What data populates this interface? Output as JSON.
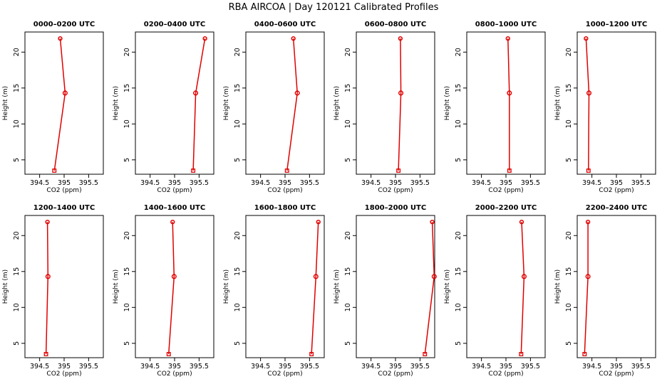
{
  "figure": {
    "title": "RBA AIRCOA | Day 120121 Calibrated Profiles"
  },
  "chart_data": [
    {
      "type": "line",
      "title": "0000–0200 UTC",
      "xlabel": "CO2 (ppm)",
      "ylabel": "Height (m)",
      "xlim": [
        394.2,
        395.8
      ],
      "ylim": [
        3,
        22.8
      ],
      "xticks": [
        394.5,
        395.0,
        395.5
      ],
      "yticks": [
        5,
        10,
        15,
        20
      ],
      "x": [
        394.8,
        395.02,
        394.92
      ],
      "y": [
        3.5,
        14.3,
        21.9
      ]
    },
    {
      "type": "line",
      "title": "0200–0400 UTC",
      "xlabel": "CO2 (ppm)",
      "ylabel": "Height (m)",
      "xlim": [
        394.2,
        395.8
      ],
      "ylim": [
        3,
        22.8
      ],
      "xticks": [
        394.5,
        395.0,
        395.5
      ],
      "yticks": [
        5,
        10,
        15,
        20
      ],
      "x": [
        395.38,
        395.43,
        395.62
      ],
      "y": [
        3.5,
        14.3,
        21.9
      ]
    },
    {
      "type": "line",
      "title": "0400–0600 UTC",
      "xlabel": "CO2 (ppm)",
      "ylabel": "Height (m)",
      "xlim": [
        394.2,
        395.8
      ],
      "ylim": [
        3,
        22.8
      ],
      "xticks": [
        394.5,
        395.0,
        395.5
      ],
      "yticks": [
        5,
        10,
        15,
        20
      ],
      "x": [
        395.04,
        395.25,
        395.17
      ],
      "y": [
        3.5,
        14.3,
        21.9
      ]
    },
    {
      "type": "line",
      "title": "0600–0800 UTC",
      "xlabel": "CO2 (ppm)",
      "ylabel": "Height (m)",
      "xlim": [
        394.2,
        395.8
      ],
      "ylim": [
        3,
        22.8
      ],
      "xticks": [
        394.5,
        395.0,
        395.5
      ],
      "yticks": [
        5,
        10,
        15,
        20
      ],
      "x": [
        395.06,
        395.11,
        395.1
      ],
      "y": [
        3.5,
        14.3,
        21.9
      ]
    },
    {
      "type": "line",
      "title": "0800–1000 UTC",
      "xlabel": "CO2 (ppm)",
      "ylabel": "Height (m)",
      "xlim": [
        394.2,
        395.8
      ],
      "ylim": [
        3,
        22.8
      ],
      "xticks": [
        394.5,
        395.0,
        395.5
      ],
      "yticks": [
        5,
        10,
        15,
        20
      ],
      "x": [
        395.07,
        395.07,
        395.04
      ],
      "y": [
        3.5,
        14.3,
        21.9
      ]
    },
    {
      "type": "line",
      "title": "1000–1200 UTC",
      "xlabel": "CO2 (ppm)",
      "ylabel": "Height (m)",
      "xlim": [
        394.2,
        395.8
      ],
      "ylim": [
        3,
        22.8
      ],
      "xticks": [
        394.5,
        395.0,
        395.5
      ],
      "yticks": [
        5,
        10,
        15,
        20
      ],
      "x": [
        394.43,
        394.44,
        394.38
      ],
      "y": [
        3.5,
        14.3,
        21.9
      ]
    },
    {
      "type": "line",
      "title": "1200–1400 UTC",
      "xlabel": "CO2 (ppm)",
      "ylabel": "Height (m)",
      "xlim": [
        394.2,
        395.8
      ],
      "ylim": [
        3,
        22.8
      ],
      "xticks": [
        394.5,
        395.0,
        395.5
      ],
      "yticks": [
        5,
        10,
        15,
        20
      ],
      "x": [
        394.63,
        394.67,
        394.66
      ],
      "y": [
        3.5,
        14.3,
        21.9
      ]
    },
    {
      "type": "line",
      "title": "1400–1600 UTC",
      "xlabel": "CO2 (ppm)",
      "ylabel": "Height (m)",
      "xlim": [
        394.2,
        395.8
      ],
      "ylim": [
        3,
        22.8
      ],
      "xticks": [
        394.5,
        395.0,
        395.5
      ],
      "yticks": [
        5,
        10,
        15,
        20
      ],
      "x": [
        394.88,
        394.99,
        394.96
      ],
      "y": [
        3.5,
        14.3,
        21.9
      ]
    },
    {
      "type": "line",
      "title": "1600–1800 UTC",
      "xlabel": "CO2 (ppm)",
      "ylabel": "Height (m)",
      "xlim": [
        394.2,
        395.8
      ],
      "ylim": [
        3,
        22.8
      ],
      "xticks": [
        394.5,
        395.0,
        395.5
      ],
      "yticks": [
        5,
        10,
        15,
        20
      ],
      "x": [
        395.54,
        395.63,
        395.68
      ],
      "y": [
        3.5,
        14.3,
        21.9
      ]
    },
    {
      "type": "line",
      "title": "1800–2000 UTC",
      "xlabel": "CO2 (ppm)",
      "ylabel": "Height (m)",
      "xlim": [
        394.2,
        395.8
      ],
      "ylim": [
        3,
        22.8
      ],
      "xticks": [
        394.5,
        395.0,
        395.5
      ],
      "yticks": [
        5,
        10,
        15,
        20
      ],
      "x": [
        395.6,
        395.79,
        395.75
      ],
      "y": [
        3.5,
        14.3,
        21.9
      ]
    },
    {
      "type": "line",
      "title": "2000–2200 UTC",
      "xlabel": "CO2 (ppm)",
      "ylabel": "Height (m)",
      "xlim": [
        394.2,
        395.8
      ],
      "ylim": [
        3,
        22.8
      ],
      "xticks": [
        394.5,
        395.0,
        395.5
      ],
      "yticks": [
        5,
        10,
        15,
        20
      ],
      "x": [
        395.31,
        395.37,
        395.32
      ],
      "y": [
        3.5,
        14.3,
        21.9
      ]
    },
    {
      "type": "line",
      "title": "2200–2400 UTC",
      "xlabel": "CO2 (ppm)",
      "ylabel": "Height (m)",
      "xlim": [
        394.2,
        395.8
      ],
      "ylim": [
        3,
        22.8
      ],
      "xticks": [
        394.5,
        395.0,
        395.5
      ],
      "yticks": [
        5,
        10,
        15,
        20
      ],
      "x": [
        394.35,
        394.42,
        394.42
      ],
      "y": [
        3.5,
        14.3,
        21.9
      ]
    }
  ]
}
